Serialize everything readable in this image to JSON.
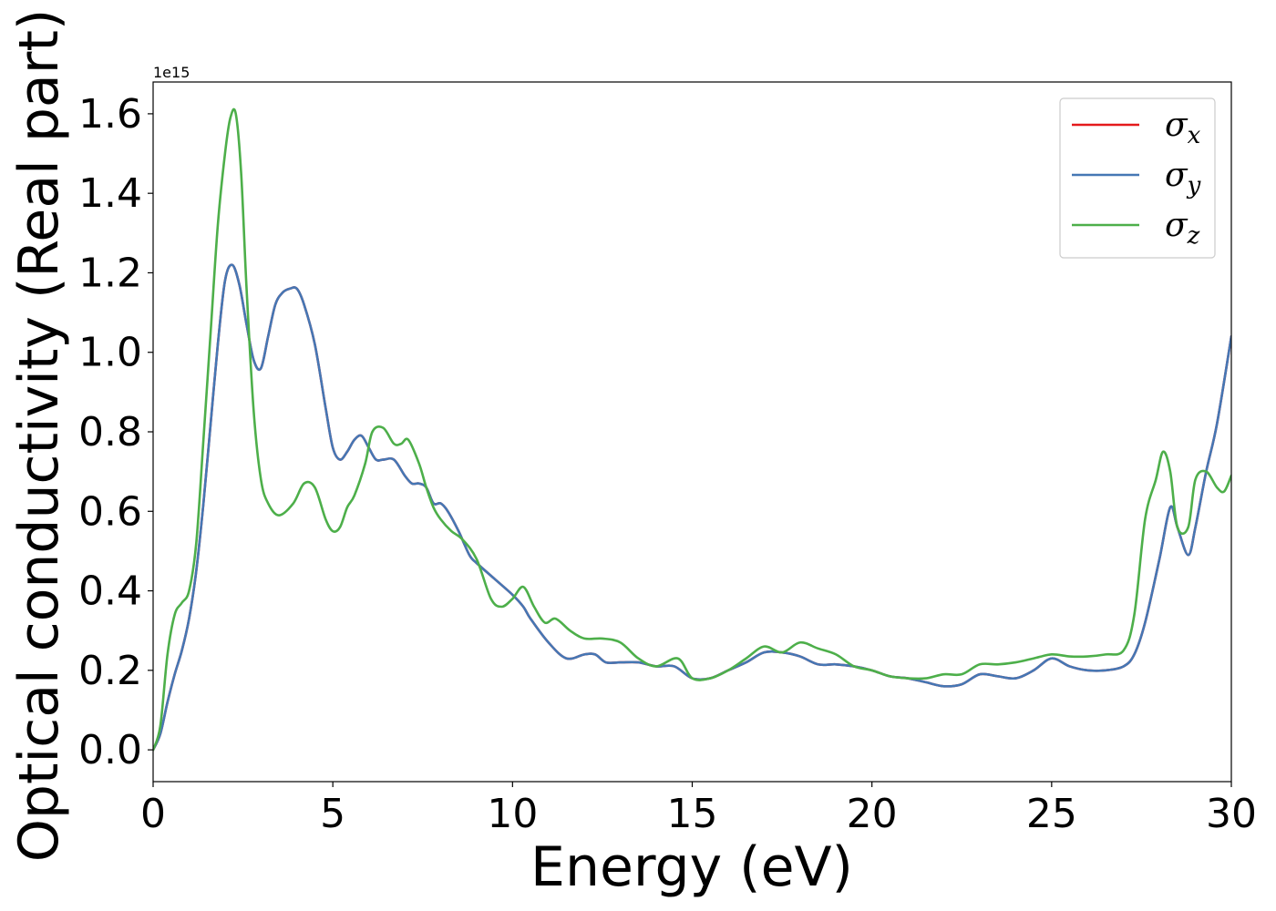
{
  "chart_data": {
    "type": "line",
    "title": "",
    "xlabel": "Energy (eV)",
    "ylabel": "Optical conductivity (Real part)",
    "y_offset_label": "1e15",
    "xlim": [
      0,
      30
    ],
    "ylim": [
      -0.08,
      1.68
    ],
    "x_ticks": [
      0,
      5,
      10,
      15,
      20,
      25,
      30
    ],
    "x_tick_labels": [
      "0",
      "5",
      "10",
      "15",
      "20",
      "25",
      "30"
    ],
    "y_ticks": [
      0.0,
      0.2,
      0.4,
      0.6,
      0.8,
      1.0,
      1.2,
      1.4,
      1.6
    ],
    "y_tick_labels": [
      "0.0",
      "0.2",
      "0.4",
      "0.6",
      "0.8",
      "1.0",
      "1.2",
      "1.4",
      "1.6"
    ],
    "grid": false,
    "legend": {
      "position": "top-right"
    },
    "series": [
      {
        "name": "σx",
        "symbol": "σ",
        "subscript": "x",
        "color": "#e41a1c",
        "x": [
          0,
          0.2,
          0.4,
          0.6,
          0.8,
          1.0,
          1.2,
          1.4,
          1.6,
          1.8,
          2.0,
          2.2,
          2.4,
          2.6,
          2.8,
          3.0,
          3.2,
          3.4,
          3.6,
          3.8,
          4.0,
          4.2,
          4.5,
          4.8,
          5.0,
          5.2,
          5.4,
          5.6,
          5.8,
          6.0,
          6.2,
          6.4,
          6.7,
          7.0,
          7.2,
          7.4,
          7.6,
          7.8,
          8.0,
          8.2,
          8.5,
          8.8,
          9.0,
          9.5,
          10.0,
          10.3,
          10.5,
          11.0,
          11.5,
          12.0,
          12.3,
          12.6,
          13.0,
          13.5,
          14.0,
          14.5,
          15.0,
          15.5,
          16.0,
          16.5,
          17.0,
          17.5,
          18.0,
          18.5,
          19.0,
          19.5,
          20.0,
          20.5,
          21.0,
          21.5,
          22.0,
          22.5,
          23.0,
          23.5,
          24.0,
          24.5,
          25.0,
          25.5,
          26.0,
          26.5,
          27.0,
          27.3,
          27.6,
          28.0,
          28.3,
          28.5,
          28.8,
          29.0,
          29.3,
          29.6,
          30.0
        ],
        "values": [
          0.0,
          0.04,
          0.12,
          0.19,
          0.25,
          0.33,
          0.45,
          0.62,
          0.82,
          1.02,
          1.18,
          1.22,
          1.17,
          1.07,
          0.98,
          0.96,
          1.04,
          1.12,
          1.15,
          1.16,
          1.16,
          1.12,
          1.02,
          0.86,
          0.76,
          0.73,
          0.75,
          0.78,
          0.79,
          0.76,
          0.73,
          0.73,
          0.73,
          0.69,
          0.67,
          0.67,
          0.66,
          0.62,
          0.62,
          0.6,
          0.55,
          0.49,
          0.47,
          0.43,
          0.39,
          0.36,
          0.33,
          0.27,
          0.23,
          0.24,
          0.24,
          0.22,
          0.22,
          0.22,
          0.21,
          0.21,
          0.18,
          0.18,
          0.2,
          0.22,
          0.245,
          0.245,
          0.235,
          0.215,
          0.215,
          0.21,
          0.2,
          0.185,
          0.18,
          0.17,
          0.16,
          0.165,
          0.19,
          0.185,
          0.18,
          0.2,
          0.23,
          0.21,
          0.2,
          0.2,
          0.21,
          0.24,
          0.32,
          0.48,
          0.61,
          0.56,
          0.49,
          0.56,
          0.7,
          0.82,
          1.04
        ]
      },
      {
        "name": "σy",
        "symbol": "σ",
        "subscript": "y",
        "color": "#4577b4",
        "x": [
          0,
          0.2,
          0.4,
          0.6,
          0.8,
          1.0,
          1.2,
          1.4,
          1.6,
          1.8,
          2.0,
          2.2,
          2.4,
          2.6,
          2.8,
          3.0,
          3.2,
          3.4,
          3.6,
          3.8,
          4.0,
          4.2,
          4.5,
          4.8,
          5.0,
          5.2,
          5.4,
          5.6,
          5.8,
          6.0,
          6.2,
          6.4,
          6.7,
          7.0,
          7.2,
          7.4,
          7.6,
          7.8,
          8.0,
          8.2,
          8.5,
          8.8,
          9.0,
          9.5,
          10.0,
          10.3,
          10.5,
          11.0,
          11.5,
          12.0,
          12.3,
          12.6,
          13.0,
          13.5,
          14.0,
          14.5,
          15.0,
          15.5,
          16.0,
          16.5,
          17.0,
          17.5,
          18.0,
          18.5,
          19.0,
          19.5,
          20.0,
          20.5,
          21.0,
          21.5,
          22.0,
          22.5,
          23.0,
          23.5,
          24.0,
          24.5,
          25.0,
          25.5,
          26.0,
          26.5,
          27.0,
          27.3,
          27.6,
          28.0,
          28.3,
          28.5,
          28.8,
          29.0,
          29.3,
          29.6,
          30.0
        ],
        "values": [
          0.0,
          0.04,
          0.12,
          0.19,
          0.25,
          0.33,
          0.45,
          0.62,
          0.82,
          1.02,
          1.18,
          1.22,
          1.17,
          1.07,
          0.98,
          0.96,
          1.04,
          1.12,
          1.15,
          1.16,
          1.16,
          1.12,
          1.02,
          0.86,
          0.76,
          0.73,
          0.75,
          0.78,
          0.79,
          0.76,
          0.73,
          0.73,
          0.73,
          0.69,
          0.67,
          0.67,
          0.66,
          0.62,
          0.62,
          0.6,
          0.55,
          0.49,
          0.47,
          0.43,
          0.39,
          0.36,
          0.33,
          0.27,
          0.23,
          0.24,
          0.24,
          0.22,
          0.22,
          0.22,
          0.21,
          0.21,
          0.18,
          0.18,
          0.2,
          0.22,
          0.245,
          0.245,
          0.235,
          0.215,
          0.215,
          0.21,
          0.2,
          0.185,
          0.18,
          0.17,
          0.16,
          0.165,
          0.19,
          0.185,
          0.18,
          0.2,
          0.23,
          0.21,
          0.2,
          0.2,
          0.21,
          0.24,
          0.32,
          0.48,
          0.61,
          0.56,
          0.49,
          0.56,
          0.7,
          0.82,
          1.04
        ]
      },
      {
        "name": "σz",
        "symbol": "σ",
        "subscript": "z",
        "color": "#4daf4a",
        "x": [
          0,
          0.2,
          0.4,
          0.6,
          0.8,
          1.0,
          1.2,
          1.4,
          1.6,
          1.8,
          2.0,
          2.15,
          2.3,
          2.45,
          2.6,
          2.8,
          3.0,
          3.2,
          3.5,
          3.9,
          4.2,
          4.5,
          4.8,
          5.0,
          5.2,
          5.4,
          5.6,
          5.9,
          6.1,
          6.4,
          6.7,
          6.9,
          7.1,
          7.4,
          7.6,
          7.8,
          8.0,
          8.3,
          8.6,
          9.0,
          9.4,
          9.7,
          10.0,
          10.3,
          10.6,
          10.9,
          11.2,
          11.6,
          12.0,
          12.5,
          13.0,
          13.5,
          14.0,
          14.6,
          15.0,
          15.5,
          16.0,
          16.5,
          17.0,
          17.5,
          18.0,
          18.5,
          19.0,
          19.5,
          20.0,
          20.5,
          21.0,
          21.5,
          22.0,
          22.5,
          23.0,
          23.5,
          24.0,
          24.5,
          25.0,
          25.5,
          26.0,
          26.5,
          27.0,
          27.3,
          27.6,
          27.9,
          28.1,
          28.3,
          28.5,
          28.8,
          29.0,
          29.3,
          29.6,
          29.8,
          30.0
        ],
        "values": [
          0.0,
          0.06,
          0.24,
          0.34,
          0.37,
          0.4,
          0.52,
          0.78,
          1.05,
          1.32,
          1.5,
          1.59,
          1.6,
          1.45,
          1.16,
          0.85,
          0.68,
          0.62,
          0.59,
          0.62,
          0.67,
          0.66,
          0.58,
          0.55,
          0.56,
          0.61,
          0.64,
          0.72,
          0.8,
          0.81,
          0.77,
          0.77,
          0.78,
          0.72,
          0.66,
          0.61,
          0.58,
          0.55,
          0.53,
          0.48,
          0.38,
          0.36,
          0.38,
          0.41,
          0.36,
          0.32,
          0.33,
          0.3,
          0.28,
          0.28,
          0.27,
          0.23,
          0.21,
          0.23,
          0.18,
          0.18,
          0.2,
          0.23,
          0.26,
          0.245,
          0.27,
          0.255,
          0.24,
          0.21,
          0.2,
          0.185,
          0.18,
          0.18,
          0.19,
          0.19,
          0.215,
          0.215,
          0.22,
          0.23,
          0.24,
          0.235,
          0.235,
          0.24,
          0.25,
          0.34,
          0.58,
          0.68,
          0.75,
          0.7,
          0.56,
          0.56,
          0.68,
          0.7,
          0.66,
          0.65,
          0.69
        ]
      }
    ]
  }
}
